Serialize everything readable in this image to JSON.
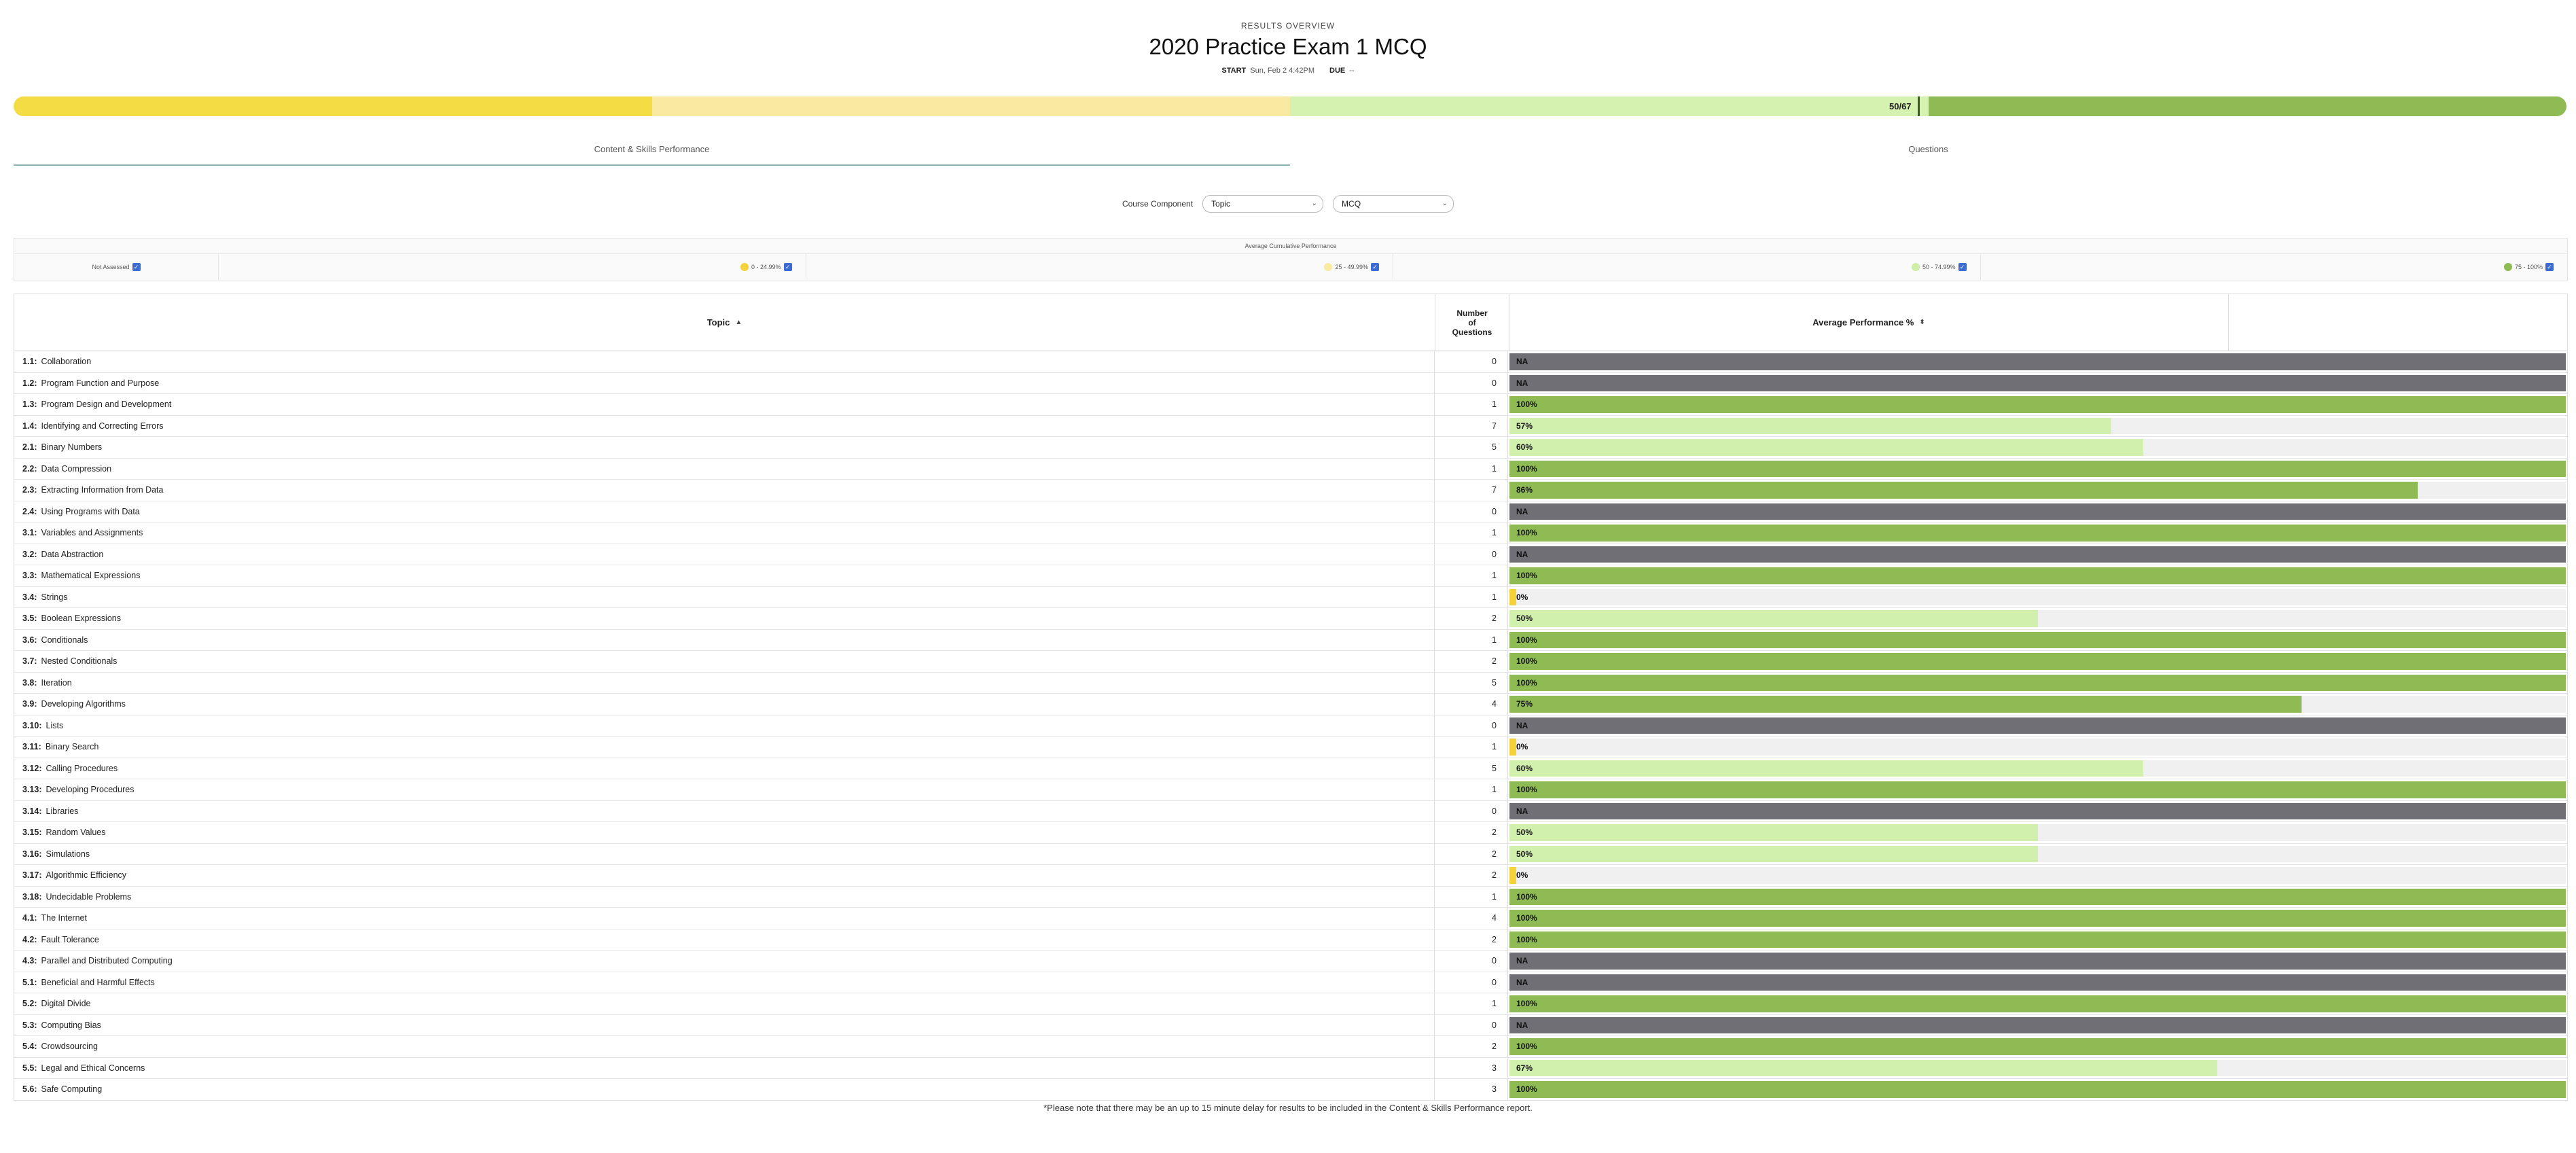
{
  "header": {
    "overview_label": "RESULTS OVERVIEW",
    "title": "2020 Practice Exam 1 MCQ",
    "start_label": "START",
    "start_value": "Sun, Feb 2 4:42PM",
    "due_label": "DUE",
    "due_value": "--"
  },
  "progress": {
    "score_label": "50/67",
    "score_fraction": 0.746,
    "colors": {
      "band1": "#f4dc45",
      "band2": "#f8eaa0",
      "band3": "#d6f2b0",
      "band4": "#8fbb54"
    }
  },
  "tabs": [
    {
      "label": "Content & Skills Performance",
      "active": true
    },
    {
      "label": "Questions",
      "active": false
    }
  ],
  "controls": {
    "course_component_label": "Course Component",
    "topic_select": "Topic",
    "type_select": "MCQ"
  },
  "legend": {
    "title": "Average Cumulative Performance",
    "items": [
      {
        "label": "Not Assessed",
        "color": ""
      },
      {
        "label": "0 - 24.99%",
        "color": "#f4d33a"
      },
      {
        "label": "25 - 49.99%",
        "color": "#f8eaa0"
      },
      {
        "label": "50 - 74.99%",
        "color": "#cfeea8"
      },
      {
        "label": "75 - 100%",
        "color": "#8fbb54"
      }
    ]
  },
  "table": {
    "headers": {
      "topic": "Topic",
      "num_line1": "Number",
      "num_line2": "of",
      "num_line3": "Questions",
      "perf": "Average Performance %"
    },
    "rows": [
      {
        "code": "1.1:",
        "name": "Collaboration",
        "count": "0",
        "perf": null,
        "label": "NA"
      },
      {
        "code": "1.2:",
        "name": "Program Function and Purpose",
        "count": "0",
        "perf": null,
        "label": "NA"
      },
      {
        "code": "1.3:",
        "name": "Program Design and Development",
        "count": "1",
        "perf": 100,
        "label": "100%"
      },
      {
        "code": "1.4:",
        "name": "Identifying and Correcting Errors",
        "count": "7",
        "perf": 57,
        "label": "57%"
      },
      {
        "code": "2.1:",
        "name": "Binary Numbers",
        "count": "5",
        "perf": 60,
        "label": "60%"
      },
      {
        "code": "2.2:",
        "name": "Data Compression",
        "count": "1",
        "perf": 100,
        "label": "100%"
      },
      {
        "code": "2.3:",
        "name": "Extracting Information from Data",
        "count": "7",
        "perf": 86,
        "label": "86%"
      },
      {
        "code": "2.4:",
        "name": "Using Programs with Data",
        "count": "0",
        "perf": null,
        "label": "NA"
      },
      {
        "code": "3.1:",
        "name": "Variables and Assignments",
        "count": "1",
        "perf": 100,
        "label": "100%"
      },
      {
        "code": "3.2:",
        "name": "Data Abstraction",
        "count": "0",
        "perf": null,
        "label": "NA"
      },
      {
        "code": "3.3:",
        "name": "Mathematical Expressions",
        "count": "1",
        "perf": 100,
        "label": "100%"
      },
      {
        "code": "3.4:",
        "name": "Strings",
        "count": "1",
        "perf": 0,
        "label": "0%"
      },
      {
        "code": "3.5:",
        "name": "Boolean Expressions",
        "count": "2",
        "perf": 50,
        "label": "50%"
      },
      {
        "code": "3.6:",
        "name": "Conditionals",
        "count": "1",
        "perf": 100,
        "label": "100%"
      },
      {
        "code": "3.7:",
        "name": "Nested Conditionals",
        "count": "2",
        "perf": 100,
        "label": "100%"
      },
      {
        "code": "3.8:",
        "name": "Iteration",
        "count": "5",
        "perf": 100,
        "label": "100%"
      },
      {
        "code": "3.9:",
        "name": "Developing Algorithms",
        "count": "4",
        "perf": 75,
        "label": "75%"
      },
      {
        "code": "3.10:",
        "name": "Lists",
        "count": "0",
        "perf": null,
        "label": "NA"
      },
      {
        "code": "3.11:",
        "name": "Binary Search",
        "count": "1",
        "perf": 0,
        "label": "0%"
      },
      {
        "code": "3.12:",
        "name": "Calling Procedures",
        "count": "5",
        "perf": 60,
        "label": "60%"
      },
      {
        "code": "3.13:",
        "name": "Developing Procedures",
        "count": "1",
        "perf": 100,
        "label": "100%"
      },
      {
        "code": "3.14:",
        "name": "Libraries",
        "count": "0",
        "perf": null,
        "label": "NA"
      },
      {
        "code": "3.15:",
        "name": "Random Values",
        "count": "2",
        "perf": 50,
        "label": "50%"
      },
      {
        "code": "3.16:",
        "name": "Simulations",
        "count": "2",
        "perf": 50,
        "label": "50%"
      },
      {
        "code": "3.17:",
        "name": "Algorithmic Efficiency",
        "count": "2",
        "perf": 0,
        "label": "0%"
      },
      {
        "code": "3.18:",
        "name": "Undecidable Problems",
        "count": "1",
        "perf": 100,
        "label": "100%"
      },
      {
        "code": "4.1:",
        "name": "The Internet",
        "count": "4",
        "perf": 100,
        "label": "100%"
      },
      {
        "code": "4.2:",
        "name": "Fault Tolerance",
        "count": "2",
        "perf": 100,
        "label": "100%"
      },
      {
        "code": "4.3:",
        "name": "Parallel and Distributed Computing",
        "count": "0",
        "perf": null,
        "label": "NA"
      },
      {
        "code": "5.1:",
        "name": "Beneficial and Harmful Effects",
        "count": "0",
        "perf": null,
        "label": "NA"
      },
      {
        "code": "5.2:",
        "name": "Digital Divide",
        "count": "1",
        "perf": 100,
        "label": "100%"
      },
      {
        "code": "5.3:",
        "name": "Computing Bias",
        "count": "0",
        "perf": null,
        "label": "NA"
      },
      {
        "code": "5.4:",
        "name": "Crowdsourcing",
        "count": "2",
        "perf": 100,
        "label": "100%"
      },
      {
        "code": "5.5:",
        "name": "Legal and Ethical Concerns",
        "count": "3",
        "perf": 67,
        "label": "67%"
      },
      {
        "code": "5.6:",
        "name": "Safe Computing",
        "count": "3",
        "perf": 100,
        "label": "100%"
      }
    ]
  },
  "bar_colors": {
    "na": "#6f6f75",
    "low": "#f4d33a",
    "mid": "#d2f0ad",
    "high": "#8fbb54"
  },
  "footnote": "*Please note that there may be an up to 15 minute delay for results to be included in the Content & Skills Performance report."
}
